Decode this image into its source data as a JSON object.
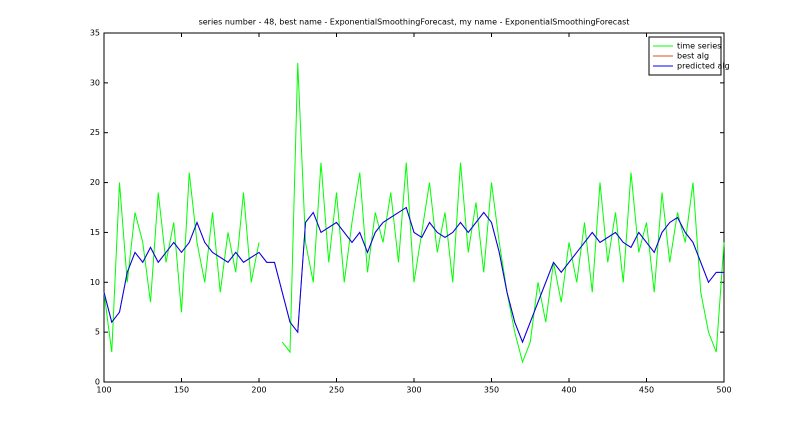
{
  "chart_data": {
    "type": "line",
    "title": "series number - 48, best name - ExponentialSmoothingForecast, my name - ExponentialSmoothingForecast",
    "x": [
      100,
      105,
      110,
      115,
      120,
      125,
      130,
      135,
      140,
      145,
      150,
      155,
      160,
      165,
      170,
      175,
      180,
      185,
      190,
      195,
      200,
      205,
      210,
      215,
      220,
      225,
      230,
      235,
      240,
      245,
      250,
      255,
      260,
      265,
      270,
      275,
      280,
      285,
      290,
      295,
      300,
      305,
      310,
      315,
      320,
      325,
      330,
      335,
      340,
      345,
      350,
      355,
      360,
      365,
      370,
      375,
      380,
      385,
      390,
      395,
      400,
      405,
      410,
      415,
      420,
      425,
      430,
      435,
      440,
      445,
      450,
      455,
      460,
      465,
      470,
      475,
      480,
      485,
      490,
      495,
      500
    ],
    "series": [
      {
        "name": "time series",
        "color": "#00ff00",
        "values": [
          9,
          3,
          20,
          10,
          17,
          14,
          8,
          19,
          12,
          16,
          7,
          21,
          14,
          10,
          17,
          9,
          15,
          11,
          19,
          10,
          14,
          null,
          null,
          4,
          3,
          32,
          14,
          10,
          22,
          12,
          19,
          10,
          16,
          21,
          11,
          17,
          14,
          19,
          12,
          22,
          10,
          15,
          20,
          13,
          17,
          10,
          22,
          13,
          18,
          11,
          20,
          14,
          9,
          5,
          2,
          4,
          10,
          6,
          12,
          8,
          14,
          10,
          16,
          9,
          20,
          12,
          17,
          10,
          21,
          13,
          16,
          9,
          19,
          12,
          17,
          14,
          20,
          9,
          5,
          3,
          14
        ]
      },
      {
        "name": "best alg",
        "color": "#d95319",
        "values": [
          9,
          6,
          7,
          11,
          13,
          12,
          13.5,
          12,
          13,
          14,
          13,
          14,
          16,
          14,
          13,
          12.5,
          12,
          13,
          12,
          12.5,
          13,
          12,
          12,
          9,
          6,
          5,
          16,
          17,
          15,
          15.5,
          16,
          15,
          14,
          15,
          13,
          15,
          16,
          16.5,
          17,
          17.5,
          15,
          14.5,
          16,
          15,
          14.5,
          15,
          16,
          15,
          16,
          17,
          16,
          13,
          9,
          6,
          4,
          6,
          8,
          10,
          12,
          11,
          12,
          13,
          14,
          15,
          14,
          14.5,
          15,
          14,
          13.5,
          15,
          14,
          13,
          15,
          16,
          16.5,
          15,
          14,
          12,
          10,
          11,
          11
        ]
      },
      {
        "name": "predicted alg",
        "color": "#0000ff",
        "values": [
          9,
          6,
          7,
          11,
          13,
          12,
          13.5,
          12,
          13,
          14,
          13,
          14,
          16,
          14,
          13,
          12.5,
          12,
          13,
          12,
          12.5,
          13,
          12,
          12,
          9,
          6,
          5,
          16,
          17,
          15,
          15.5,
          16,
          15,
          14,
          15,
          13,
          15,
          16,
          16.5,
          17,
          17.5,
          15,
          14.5,
          16,
          15,
          14.5,
          15,
          16,
          15,
          16,
          17,
          16,
          13,
          9,
          6,
          4,
          6,
          8,
          10,
          12,
          11,
          12,
          13,
          14,
          15,
          14,
          14.5,
          15,
          14,
          13.5,
          15,
          14,
          13,
          15,
          16,
          16.5,
          15,
          14,
          12,
          10,
          11,
          11
        ]
      }
    ],
    "xlim": [
      100,
      500
    ],
    "xticks": [
      100,
      150,
      200,
      250,
      300,
      350,
      400,
      450,
      500
    ],
    "ylim": [
      0,
      35
    ],
    "yticks": [
      0,
      5,
      10,
      15,
      20,
      25,
      30,
      35
    ],
    "legend": "upper right"
  }
}
